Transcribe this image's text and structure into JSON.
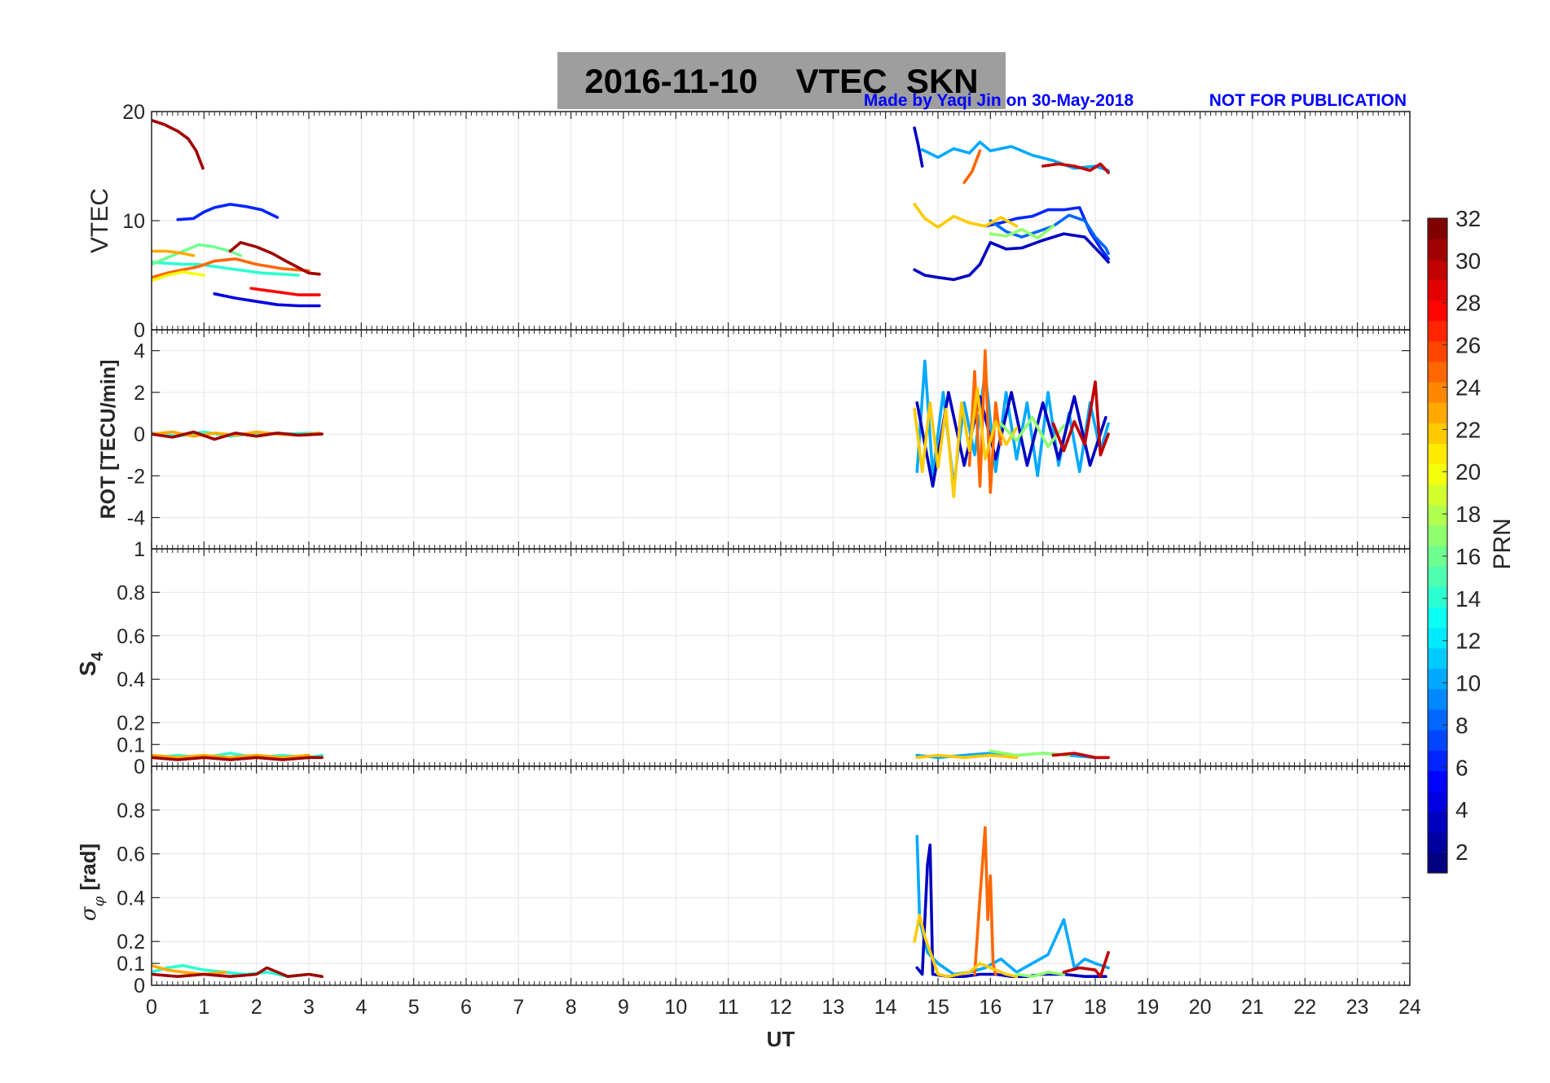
{
  "header": {
    "title": "2016-11-10    VTEC  SKN",
    "credit": "Made by Yaqi Jin on 30-May-2018",
    "notice": "NOT FOR PUBLICATION"
  },
  "x_axis": {
    "label": "UT",
    "range": [
      0,
      24
    ],
    "ticks": [
      "0",
      "1",
      "2",
      "3",
      "4",
      "5",
      "6",
      "7",
      "8",
      "9",
      "10",
      "11",
      "12",
      "13",
      "14",
      "15",
      "16",
      "17",
      "18",
      "19",
      "20",
      "21",
      "22",
      "23",
      "24"
    ]
  },
  "colorbar": {
    "label": "PRN",
    "range": [
      1,
      32
    ],
    "ticks": [
      "2",
      "4",
      "6",
      "8",
      "10",
      "12",
      "14",
      "16",
      "18",
      "20",
      "22",
      "24",
      "26",
      "28",
      "30",
      "32"
    ],
    "colormap": "jet"
  },
  "colors": {
    "title_bg": "#9e9e9e",
    "credit_text": "#0000ff",
    "grid": "#e6e6e6",
    "axis": "#262626"
  },
  "chart_data": [
    {
      "type": "line",
      "ylabel": "VTEC",
      "ylim": [
        0,
        20
      ],
      "yticks": [
        "0",
        "10",
        "20"
      ],
      "grid": true,
      "series": [
        {
          "prn": 31,
          "x": [
            0.0,
            0.25,
            0.5,
            0.7,
            0.85,
            0.98
          ],
          "y": [
            19.2,
            18.8,
            18.2,
            17.5,
            16.4,
            14.8
          ]
        },
        {
          "prn": 6,
          "x": [
            0.5,
            0.8,
            1.0,
            1.2,
            1.5,
            1.8,
            2.1,
            2.4
          ],
          "y": [
            10.1,
            10.2,
            10.8,
            11.2,
            11.5,
            11.3,
            11.0,
            10.3
          ]
        },
        {
          "prn": 14,
          "x": [
            0.0,
            0.3,
            0.6,
            0.9,
            1.2,
            1.5,
            1.8,
            2.1,
            2.5,
            2.8
          ],
          "y": [
            6.2,
            6.1,
            6.0,
            6.0,
            5.8,
            5.6,
            5.4,
            5.2,
            5.1,
            5.0
          ]
        },
        {
          "prn": 16,
          "x": [
            0.0,
            0.3,
            0.6,
            0.9,
            1.2,
            1.5,
            1.7
          ],
          "y": [
            6.0,
            6.6,
            7.2,
            7.8,
            7.6,
            7.2,
            6.8
          ]
        },
        {
          "prn": 25,
          "x": [
            0.0,
            0.3,
            0.6,
            0.9,
            1.2,
            1.6,
            2.0,
            2.5,
            3.0
          ],
          "y": [
            4.8,
            5.2,
            5.5,
            5.8,
            6.3,
            6.5,
            6.0,
            5.6,
            5.4
          ]
        },
        {
          "prn": 23,
          "x": [
            0.0,
            0.3,
            0.6,
            0.8
          ],
          "y": [
            7.2,
            7.2,
            7.0,
            6.8
          ]
        },
        {
          "prn": 20,
          "x": [
            0.0,
            0.3,
            0.6,
            1.0
          ],
          "y": [
            4.5,
            5.0,
            5.3,
            5.0
          ]
        },
        {
          "prn": 31,
          "x": [
            1.5,
            1.7,
            2.0,
            2.3,
            2.6,
            3.0,
            3.2
          ],
          "y": [
            7.2,
            8.0,
            7.6,
            7.0,
            6.2,
            5.2,
            5.1
          ]
        },
        {
          "prn": 28,
          "x": [
            1.9,
            2.2,
            2.5,
            2.8,
            3.2
          ],
          "y": [
            3.8,
            3.6,
            3.4,
            3.2,
            3.2
          ]
        },
        {
          "prn": 4,
          "x": [
            1.2,
            1.6,
            2.0,
            2.4,
            2.8,
            3.2
          ],
          "y": [
            3.3,
            2.9,
            2.6,
            2.3,
            2.2,
            2.2
          ]
        },
        {
          "prn": 3,
          "x": [
            14.55,
            14.75,
            15.0,
            15.3,
            15.6,
            15.8,
            16.0,
            16.3,
            16.6,
            17.0,
            17.4,
            17.8,
            18.1,
            18.25
          ],
          "y": [
            5.5,
            5.0,
            4.8,
            4.6,
            5.0,
            6.0,
            8.0,
            7.4,
            7.5,
            8.2,
            8.8,
            8.5,
            7.0,
            6.2
          ]
        },
        {
          "prn": 6,
          "x": [
            15.9,
            16.2,
            16.5,
            16.8,
            17.1,
            17.4,
            17.7,
            17.9,
            18.1,
            18.25
          ],
          "y": [
            9.5,
            9.8,
            10.2,
            10.4,
            11.0,
            11.0,
            11.2,
            9.0,
            7.5,
            6.5
          ]
        },
        {
          "prn": 8,
          "x": [
            16.0,
            16.3,
            16.6,
            16.9,
            17.2,
            17.5,
            17.8,
            18.0,
            18.2,
            18.25
          ],
          "y": [
            10.0,
            9.0,
            8.5,
            9.0,
            9.5,
            10.5,
            10.0,
            8.5,
            7.5,
            7.0
          ]
        },
        {
          "prn": 22,
          "x": [
            14.55,
            14.75,
            15.0,
            15.3,
            15.6,
            15.9,
            16.2,
            16.5
          ],
          "y": [
            11.5,
            10.2,
            9.4,
            10.4,
            9.8,
            9.5,
            10.3,
            9.5
          ]
        },
        {
          "prn": 17,
          "x": [
            16.0,
            16.3,
            16.6,
            16.9,
            17.2
          ],
          "y": [
            8.8,
            8.6,
            9.2,
            8.4,
            9.5
          ]
        },
        {
          "prn": 3,
          "x": [
            14.55,
            14.62,
            14.7
          ],
          "y": [
            18.5,
            17.0,
            15.0
          ]
        },
        {
          "prn": 10,
          "x": [
            14.7,
            15.0,
            15.3,
            15.6,
            15.8,
            16.0,
            16.4,
            16.8,
            17.2,
            17.6,
            18.0,
            18.25
          ],
          "y": [
            16.5,
            15.8,
            16.6,
            16.2,
            17.2,
            16.4,
            16.8,
            16.0,
            15.5,
            14.8,
            15.0,
            14.6
          ]
        },
        {
          "prn": 25,
          "x": [
            15.5,
            15.65,
            15.8
          ],
          "y": [
            13.5,
            14.5,
            16.4
          ]
        },
        {
          "prn": 30,
          "x": [
            17.0,
            17.3,
            17.6,
            17.9,
            18.1,
            18.25
          ],
          "y": [
            15.0,
            15.2,
            15.0,
            14.6,
            15.2,
            14.4
          ]
        }
      ]
    },
    {
      "type": "line",
      "ylabel": "ROT [TECU/min]",
      "ylim": [
        -5.5,
        5
      ],
      "yticks": [
        "-4",
        "-2",
        "0",
        "2",
        "4"
      ],
      "grid": true,
      "series": [
        {
          "prn": 14,
          "x": [
            0.0,
            0.5,
            1.0,
            1.5,
            2.0,
            2.5,
            3.0,
            3.25
          ],
          "y": [
            0.05,
            -0.1,
            0.1,
            -0.1,
            0.05,
            0.0,
            0.05,
            0.0
          ]
        },
        {
          "prn": 23,
          "x": [
            0.0,
            0.4,
            0.8,
            1.2,
            1.6,
            2.0,
            2.4,
            2.8,
            3.2
          ],
          "y": [
            0.0,
            0.1,
            -0.1,
            0.05,
            -0.05,
            0.1,
            0.0,
            -0.05,
            0.05
          ]
        },
        {
          "prn": 31,
          "x": [
            0.0,
            0.4,
            0.8,
            1.2,
            1.6,
            2.0,
            2.4,
            2.8,
            3.25
          ],
          "y": [
            0.0,
            -0.15,
            0.1,
            -0.25,
            0.05,
            -0.1,
            0.05,
            -0.05,
            0.0
          ]
        },
        {
          "prn": 10,
          "x": [
            14.6,
            14.75,
            14.9,
            15.1,
            15.3,
            15.5,
            15.7,
            15.9,
            16.1,
            16.3,
            16.5,
            16.7,
            16.9,
            17.1,
            17.3,
            17.5,
            17.7,
            17.9,
            18.1,
            18.25
          ],
          "y": [
            -1.8,
            3.5,
            -2.0,
            2.0,
            -2.5,
            1.5,
            -1.0,
            3.0,
            -1.8,
            2.0,
            -1.2,
            1.5,
            -2.0,
            2.0,
            -1.5,
            1.0,
            -1.8,
            1.5,
            -0.8,
            0.5
          ]
        },
        {
          "prn": 3,
          "x": [
            14.6,
            14.9,
            15.2,
            15.5,
            15.8,
            16.1,
            16.4,
            16.7,
            17.0,
            17.3,
            17.6,
            17.9,
            18.2
          ],
          "y": [
            1.5,
            -2.5,
            2.0,
            -1.5,
            1.8,
            -1.2,
            2.0,
            -1.5,
            1.5,
            -1.2,
            1.8,
            -1.5,
            0.8
          ]
        },
        {
          "prn": 25,
          "x": [
            15.6,
            15.7,
            15.8,
            15.9,
            16.0,
            16.1,
            16.2
          ],
          "y": [
            -1.5,
            3.0,
            -2.5,
            4.0,
            -2.8,
            1.5,
            -0.5
          ]
        },
        {
          "prn": 22,
          "x": [
            14.55,
            14.7,
            14.85,
            15.0,
            15.15,
            15.3,
            15.45,
            15.6,
            15.75,
            15.9,
            16.1,
            16.3,
            16.5
          ],
          "y": [
            1.2,
            -1.8,
            1.5,
            -1.6,
            1.2,
            -3.0,
            1.5,
            -0.8,
            2.2,
            -1.2,
            0.6,
            -0.5,
            0.3
          ]
        },
        {
          "prn": 17,
          "x": [
            16.2,
            16.5,
            16.8,
            17.1,
            17.4
          ],
          "y": [
            0.5,
            -0.3,
            0.8,
            -0.6,
            0.4
          ]
        },
        {
          "prn": 30,
          "x": [
            17.2,
            17.4,
            17.6,
            17.8,
            18.0,
            18.1,
            18.25
          ],
          "y": [
            0.5,
            -0.8,
            0.6,
            -0.5,
            2.5,
            -1.0,
            0.0
          ]
        }
      ]
    },
    {
      "type": "line",
      "ylabel": "S4",
      "ylim": [
        0,
        1
      ],
      "yticks": [
        "0",
        "0.1",
        "0.2",
        "0.4",
        "0.6",
        "0.8",
        "1"
      ],
      "grid": true,
      "series": [
        {
          "prn": 14,
          "x": [
            0.0,
            0.5,
            1.0,
            1.5,
            2.0,
            2.5,
            3.0,
            3.25
          ],
          "y": [
            0.04,
            0.05,
            0.04,
            0.06,
            0.04,
            0.05,
            0.04,
            0.05
          ]
        },
        {
          "prn": 23,
          "x": [
            0.0,
            0.5,
            1.0,
            1.5,
            2.0,
            2.5,
            3.0
          ],
          "y": [
            0.05,
            0.04,
            0.05,
            0.04,
            0.05,
            0.04,
            0.05
          ]
        },
        {
          "prn": 31,
          "x": [
            0.0,
            0.5,
            1.0,
            1.5,
            2.0,
            2.5,
            3.0,
            3.25
          ],
          "y": [
            0.04,
            0.03,
            0.04,
            0.03,
            0.04,
            0.03,
            0.04,
            0.04
          ]
        },
        {
          "prn": 10,
          "x": [
            14.6,
            15.0,
            15.5,
            16.0,
            16.5,
            17.0,
            17.5,
            18.0,
            18.25
          ],
          "y": [
            0.05,
            0.04,
            0.05,
            0.06,
            0.05,
            0.06,
            0.05,
            0.04,
            0.04
          ]
        },
        {
          "prn": 17,
          "x": [
            16.0,
            16.5,
            17.0,
            17.5
          ],
          "y": [
            0.07,
            0.05,
            0.06,
            0.05
          ]
        },
        {
          "prn": 22,
          "x": [
            14.6,
            15.0,
            15.5,
            16.0,
            16.5
          ],
          "y": [
            0.04,
            0.05,
            0.04,
            0.05,
            0.04
          ]
        },
        {
          "prn": 30,
          "x": [
            17.2,
            17.6,
            18.0,
            18.25
          ],
          "y": [
            0.05,
            0.06,
            0.04,
            0.04
          ]
        }
      ]
    },
    {
      "type": "line",
      "ylabel": "σφ [rad]",
      "ylim": [
        0,
        1
      ],
      "yticks": [
        "0",
        "0.1",
        "0.2",
        "0.4",
        "0.6",
        "0.8"
      ],
      "grid": true,
      "series": [
        {
          "prn": 14,
          "x": [
            0.0,
            0.3,
            0.6,
            1.0,
            1.4,
            1.8,
            2.2,
            2.6,
            3.0,
            3.25
          ],
          "y": [
            0.06,
            0.08,
            0.09,
            0.07,
            0.06,
            0.05,
            0.06,
            0.04,
            0.05,
            0.04
          ]
        },
        {
          "prn": 23,
          "x": [
            0.0,
            0.3,
            0.6,
            1.0,
            1.4
          ],
          "y": [
            0.09,
            0.07,
            0.06,
            0.05,
            0.06
          ]
        },
        {
          "prn": 31,
          "x": [
            0.0,
            0.5,
            1.0,
            1.5,
            2.0,
            2.2,
            2.6,
            3.0,
            3.25
          ],
          "y": [
            0.05,
            0.04,
            0.05,
            0.04,
            0.05,
            0.08,
            0.04,
            0.05,
            0.04
          ]
        },
        {
          "prn": 10,
          "x": [
            14.6,
            14.65,
            14.7,
            14.8,
            15.0,
            15.3,
            15.6,
            15.9,
            16.2,
            16.5,
            16.8,
            17.1,
            17.4,
            17.6,
            17.8,
            18.0,
            18.25
          ],
          "y": [
            0.68,
            0.3,
            0.25,
            0.15,
            0.1,
            0.05,
            0.06,
            0.08,
            0.12,
            0.06,
            0.1,
            0.14,
            0.3,
            0.08,
            0.12,
            0.1,
            0.08
          ]
        },
        {
          "prn": 3,
          "x": [
            14.6,
            14.7,
            14.8,
            14.85,
            14.9,
            15.2,
            15.5,
            15.8,
            16.1,
            16.4,
            16.7,
            17.0,
            17.4,
            17.8,
            18.2
          ],
          "y": [
            0.08,
            0.05,
            0.55,
            0.64,
            0.05,
            0.04,
            0.04,
            0.05,
            0.05,
            0.04,
            0.04,
            0.05,
            0.05,
            0.04,
            0.04
          ]
        },
        {
          "prn": 25,
          "x": [
            15.7,
            15.8,
            15.9,
            15.95,
            16.0,
            16.05,
            16.1
          ],
          "y": [
            0.05,
            0.4,
            0.72,
            0.3,
            0.5,
            0.1,
            0.05
          ]
        },
        {
          "prn": 22,
          "x": [
            14.55,
            14.65,
            14.75,
            14.9,
            15.0,
            15.2,
            15.4,
            15.6,
            15.8,
            16.0,
            16.3,
            16.5
          ],
          "y": [
            0.2,
            0.32,
            0.22,
            0.12,
            0.05,
            0.04,
            0.05,
            0.06,
            0.1,
            0.08,
            0.05,
            0.04
          ]
        },
        {
          "prn": 17,
          "x": [
            16.5,
            16.8,
            17.1,
            17.4
          ],
          "y": [
            0.05,
            0.04,
            0.06,
            0.05
          ]
        },
        {
          "prn": 30,
          "x": [
            17.4,
            17.7,
            18.0,
            18.1,
            18.25
          ],
          "y": [
            0.06,
            0.08,
            0.07,
            0.04,
            0.15
          ]
        }
      ]
    }
  ]
}
